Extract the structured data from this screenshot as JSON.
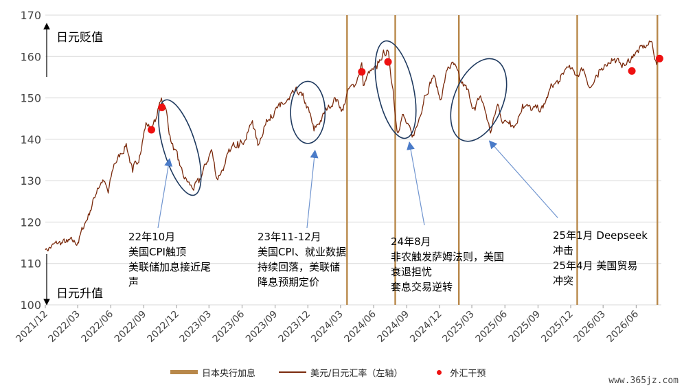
{
  "chart_data": {
    "type": "line",
    "title": "",
    "ylim": [
      100,
      170
    ],
    "y_ticks": [
      100,
      110,
      120,
      130,
      140,
      150,
      160,
      170
    ],
    "x_range": [
      "2021-12",
      "2026-08"
    ],
    "x_ticks": [
      "2021/12",
      "2022/03",
      "2022/06",
      "2022/09",
      "2022/12",
      "2023/03",
      "2023/06",
      "2023/09",
      "2023/12",
      "2024/03",
      "2024/06",
      "2024/09",
      "2024/12",
      "2025/03",
      "2025/06",
      "2025/09",
      "2025/12",
      "2026/03",
      "2026/06"
    ],
    "grid": "horizontal",
    "series": [
      {
        "name": "美元/日元汇率（左轴）",
        "color": "#7a2a0c",
        "points": [
          [
            "2021-12-01",
            113.3
          ],
          [
            "2022-01-05",
            114.8
          ],
          [
            "2022-02-01",
            115.2
          ],
          [
            "2022-03-01",
            115.0
          ],
          [
            "2022-03-20",
            119.5
          ],
          [
            "2022-04-05",
            122.8
          ],
          [
            "2022-04-25",
            128.2
          ],
          [
            "2022-05-10",
            130.2
          ],
          [
            "2022-05-25",
            127.0
          ],
          [
            "2022-06-10",
            134.0
          ],
          [
            "2022-06-30",
            136.5
          ],
          [
            "2022-07-14",
            139.0
          ],
          [
            "2022-08-01",
            132.0
          ],
          [
            "2022-08-20",
            136.0
          ],
          [
            "2022-09-07",
            144.0
          ],
          [
            "2022-09-22",
            142.3
          ],
          [
            "2022-10-05",
            145.0
          ],
          [
            "2022-10-20",
            150.0
          ],
          [
            "2022-11-01",
            147.5
          ],
          [
            "2022-11-15",
            139.5
          ],
          [
            "2022-12-05",
            135.0
          ],
          [
            "2022-12-20",
            131.0
          ],
          [
            "2023-01-15",
            128.0
          ],
          [
            "2023-02-01",
            129.5
          ],
          [
            "2023-03-08",
            137.5
          ],
          [
            "2023-03-23",
            130.5
          ],
          [
            "2023-04-15",
            134.0
          ],
          [
            "2023-05-01",
            137.5
          ],
          [
            "2023-05-20",
            139.5
          ],
          [
            "2023-06-10",
            139.8
          ],
          [
            "2023-06-30",
            144.5
          ],
          [
            "2023-07-15",
            138.5
          ],
          [
            "2023-08-01",
            143.0
          ],
          [
            "2023-08-20",
            146.0
          ],
          [
            "2023-09-15",
            147.8
          ],
          [
            "2023-10-10",
            149.5
          ],
          [
            "2023-11-01",
            151.5
          ],
          [
            "2023-11-15",
            150.5
          ],
          [
            "2023-12-05",
            146.5
          ],
          [
            "2023-12-18",
            142.0
          ],
          [
            "2024-01-05",
            144.5
          ],
          [
            "2024-01-25",
            147.5
          ],
          [
            "2024-02-15",
            150.0
          ],
          [
            "2024-03-08",
            147.0
          ],
          [
            "2024-03-20",
            151.5
          ],
          [
            "2024-04-10",
            153.0
          ],
          [
            "2024-04-29",
            158.5
          ],
          [
            "2024-05-03",
            153.0
          ],
          [
            "2024-05-20",
            156.0
          ],
          [
            "2024-06-10",
            157.0
          ],
          [
            "2024-06-26",
            160.5
          ],
          [
            "2024-07-10",
            161.5
          ],
          [
            "2024-07-25",
            152.0
          ],
          [
            "2024-08-05",
            142.0
          ],
          [
            "2024-08-20",
            146.0
          ],
          [
            "2024-09-16",
            140.5
          ],
          [
            "2024-10-01",
            143.5
          ],
          [
            "2024-10-20",
            150.5
          ],
          [
            "2024-11-15",
            155.5
          ],
          [
            "2024-12-03",
            149.5
          ],
          [
            "2024-12-25",
            157.5
          ],
          [
            "2025-01-10",
            158.0
          ],
          [
            "2025-01-27",
            154.0
          ],
          [
            "2025-02-15",
            152.0
          ],
          [
            "2025-03-10",
            147.0
          ],
          [
            "2025-03-25",
            150.5
          ],
          [
            "2025-04-10",
            146.0
          ],
          [
            "2025-04-22",
            141.5
          ],
          [
            "2025-05-12",
            148.5
          ],
          [
            "2025-05-28",
            144.0
          ],
          [
            "2025-06-15",
            144.5
          ],
          [
            "2025-07-01",
            143.5
          ],
          [
            "2025-07-20",
            148.5
          ],
          [
            "2025-08-15",
            147.0
          ],
          [
            "2025-09-15",
            147.5
          ],
          [
            "2025-10-10",
            153.0
          ],
          [
            "2025-11-01",
            154.0
          ],
          [
            "2025-11-20",
            157.5
          ],
          [
            "2025-12-15",
            155.5
          ],
          [
            "2026-01-05",
            157.0
          ],
          [
            "2026-01-25",
            152.5
          ],
          [
            "2026-02-15",
            155.0
          ],
          [
            "2026-03-05",
            158.0
          ],
          [
            "2026-03-25",
            159.5
          ],
          [
            "2026-04-15",
            158.5
          ],
          [
            "2026-05-05",
            158.0
          ],
          [
            "2026-05-25",
            160.5
          ],
          [
            "2026-06-20",
            162.0
          ],
          [
            "2026-07-15",
            163.5
          ],
          [
            "2026-07-28",
            158.0
          ],
          [
            "2026-08-05",
            159.5
          ]
        ]
      },
      {
        "name": "外汇干预",
        "type": "scatter",
        "color": "#ee1111",
        "points": [
          [
            "2022-09-22",
            142.3
          ],
          [
            "2022-10-21",
            147.7
          ],
          [
            "2024-04-29",
            156.3
          ],
          [
            "2024-07-11",
            158.7
          ],
          [
            "2026-05-20",
            156.5
          ],
          [
            "2026-08-05",
            159.5
          ]
        ]
      }
    ],
    "vlines": {
      "name": "日本央行加息",
      "color": "#b8884a",
      "dates": [
        "2024-03-19",
        "2024-07-31",
        "2025-01-24",
        "2025-12-19",
        "2026-07-30"
      ]
    },
    "ellipses": [
      {
        "cx": "2022-12-10",
        "cy": 138,
        "rx_days": 45,
        "ry": 12,
        "tilt": -17
      },
      {
        "cx": "2023-12-01",
        "cy": 146.5,
        "rx_days": 48,
        "ry": 7.5,
        "tilt": 0
      },
      {
        "cx": "2024-08-01",
        "cy": 152,
        "rx_days": 50,
        "ry": 12,
        "tilt": -12
      },
      {
        "cx": "2025-03-20",
        "cy": 149.5,
        "rx_days": 68,
        "ry": 10.5,
        "tilt": 22
      }
    ],
    "annotations": [
      {
        "lines": [
          "22年10月",
          "美国CPI触顶",
          "美联储加息接近尾",
          "声"
        ],
        "arrow_to": [
          "2022-11-10",
          135.5
        ]
      },
      {
        "lines": [
          "23年11-12月",
          "美国CPI、就业数据",
          "持续回落，美联储",
          "降息预期定价"
        ],
        "arrow_to": [
          "2023-12-20",
          137.5
        ]
      },
      {
        "lines": [
          "24年8月",
          "非农触发萨姆法则，美国",
          "衰退担忧",
          "套息交易逆转"
        ],
        "arrow_to": [
          "2024-09-10",
          139.5
        ]
      },
      {
        "lines": [
          "25年1月 Deepseek",
          "冲击",
          "25年4月 美国贸易",
          "冲突"
        ],
        "arrow_to": [
          "2025-04-25",
          140.0
        ]
      }
    ],
    "side_labels": {
      "up": "日元贬值",
      "down": "日元升值"
    }
  },
  "legend": {
    "items": [
      "日本央行加息",
      "美元/日元汇率（左轴）",
      "外汇干预"
    ]
  },
  "watermark": "www.365jz.com"
}
